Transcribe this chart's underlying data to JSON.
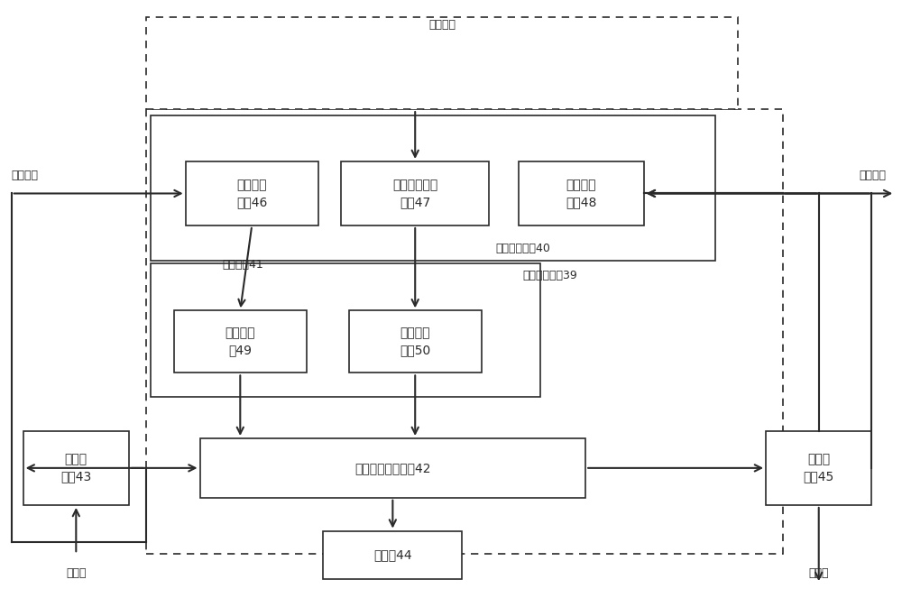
{
  "bg": "#ffffff",
  "lc": "#2a2a2a",
  "fw": 10.0,
  "fh": 6.63,
  "dpi": 100,
  "blw": 1.2,
  "alw": 1.5,
  "fs": 10,
  "fss": 9,
  "labels": {
    "mhgz": "模糊规则",
    "kzzt": "控制状态",
    "srl": "输入量",
    "scl": "输出量",
    "lshs": "隶属函数",
    "wj40": "外界交互模块40",
    "cc41": "存储模块41",
    "mh42": "模糊逻辑决策模块42",
    "mhhjk43": "模糊化\n接口43",
    "mns44": "模拟器44",
    "jmhjk45": "解模糊\n接口45",
    "gz46": "规则更新\n单元46",
    "ls47": "隶属函数更新\n单元47",
    "zt48": "状态信息\n单元48",
    "gzk49": "规则库单\n元49",
    "lsh50": "隶属函数\n单元50",
    "mhtl39": "模糊推理器件39"
  }
}
